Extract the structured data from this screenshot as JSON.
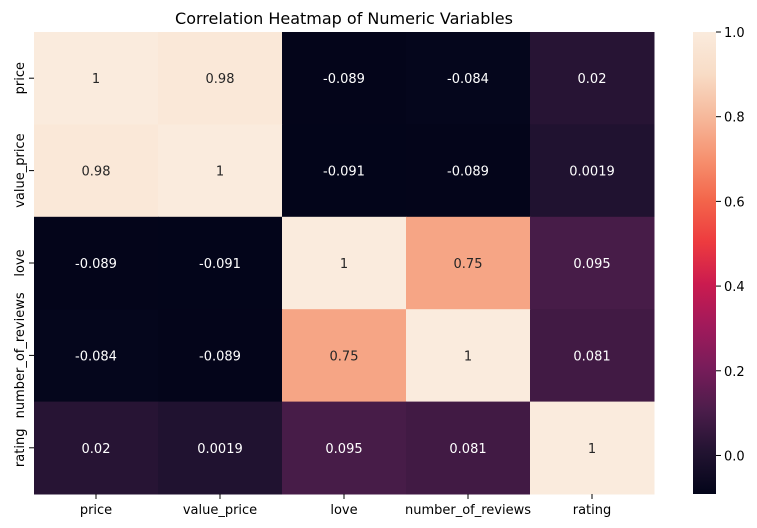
{
  "chart_data": {
    "type": "heatmap",
    "title": "Correlation Heatmap of Numeric Variables",
    "xlabel": "",
    "ylabel": "",
    "x_categories": [
      "price",
      "value_price",
      "love",
      "number_of_reviews",
      "rating"
    ],
    "y_categories": [
      "price",
      "value_price",
      "love",
      "number_of_reviews",
      "rating"
    ],
    "values": [
      [
        1,
        0.98,
        -0.089,
        -0.084,
        0.02
      ],
      [
        0.98,
        1,
        -0.091,
        -0.089,
        0.0019
      ],
      [
        -0.089,
        -0.091,
        1,
        0.75,
        0.095
      ],
      [
        -0.084,
        -0.089,
        0.75,
        1,
        0.081
      ],
      [
        0.02,
        0.0019,
        0.095,
        0.081,
        1
      ]
    ],
    "annotations": [
      [
        "1",
        "0.98",
        "-0.089",
        "-0.084",
        "0.02"
      ],
      [
        "0.98",
        "1",
        "-0.091",
        "-0.089",
        "0.0019"
      ],
      [
        "-0.089",
        "-0.091",
        "1",
        "0.75",
        "0.095"
      ],
      [
        "-0.084",
        "-0.089",
        "0.75",
        "1",
        "0.081"
      ],
      [
        "0.02",
        "0.0019",
        "0.095",
        "0.081",
        "1"
      ]
    ],
    "colorbar": {
      "range": [
        -0.091,
        1
      ],
      "ticks": [
        0.0,
        0.2,
        0.4,
        0.6,
        0.8,
        1.0
      ],
      "tick_labels": [
        "0.0",
        "0.2",
        "0.4",
        "0.6",
        "0.8",
        "1.0"
      ]
    },
    "colormap": "rocket",
    "colormap_stops": [
      "#03051a",
      "#221331",
      "#4c1d4b",
      "#781c5a",
      "#a11a5b",
      "#cb1b4f",
      "#ed3b3f",
      "#f3664b",
      "#f69270",
      "#f6b99c",
      "#f8dcc6",
      "#faebdd"
    ],
    "grid": false
  }
}
